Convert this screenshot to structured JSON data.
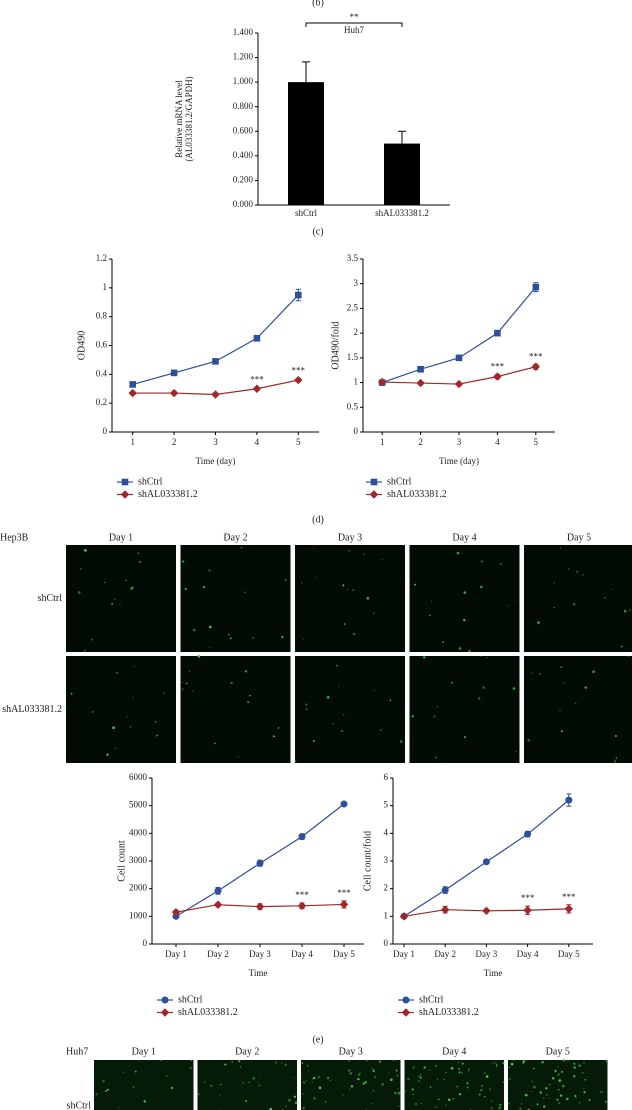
{
  "panel_labels": [
    "(b)",
    "(c)",
    "(d)",
    "(e)"
  ],
  "chart_data": [
    {
      "type": "bar",
      "title": "Huh7",
      "ylabel": [
        "Relative mRNA level",
        "(AL033381.2/GAPDH)"
      ],
      "categories": [
        "shCtrl",
        "shAL033381.2"
      ],
      "values": [
        1.0,
        0.5
      ],
      "errors": [
        0.165,
        0.1
      ],
      "color": "#000000",
      "ylim": [
        0,
        1.4
      ],
      "yticks": [
        {
          "value": 0,
          "label": "0.000"
        },
        {
          "value": 0.2,
          "label": "0.200"
        },
        {
          "value": 0.4,
          "label": "0.400"
        },
        {
          "value": 0.6,
          "label": "0.600"
        },
        {
          "value": 0.8,
          "label": "0.800"
        },
        {
          "value": 1.0,
          "label": "1.000"
        },
        {
          "value": 1.2,
          "label": "1.200"
        },
        {
          "value": 1.4,
          "label": "1.400"
        }
      ],
      "annotations": [
        {
          "text": "**"
        }
      ]
    },
    {
      "type": "line",
      "ylabel": "OD490",
      "xlabel": "Time (day)",
      "x": [
        1,
        2,
        3,
        4,
        5
      ],
      "xlim": [
        0.5,
        5.5
      ],
      "xticks": [
        1,
        2,
        3,
        4,
        5
      ],
      "ylim": [
        0,
        1.2
      ],
      "yticks": [
        0,
        0.2,
        0.4,
        0.6,
        0.8,
        1,
        1.2
      ],
      "legend": "bottom",
      "series": [
        {
          "name": "shCtrl",
          "color": "#2e4f9b",
          "marker": "square",
          "values": [
            0.33,
            0.41,
            0.49,
            0.65,
            0.95
          ],
          "errors": [
            0.01,
            0.01,
            0.01,
            0.01,
            0.04
          ]
        },
        {
          "name": "shAL033381.2",
          "color": "#a3262a",
          "marker": "diamond",
          "values": [
            0.27,
            0.27,
            0.26,
            0.3,
            0.36
          ],
          "errors": [
            0.01,
            0.01,
            0.01,
            0.01,
            0.01
          ]
        }
      ],
      "annotations": [
        {
          "text": "***",
          "x": 4
        },
        {
          "text": "***",
          "x": 5
        }
      ]
    },
    {
      "type": "line",
      "ylabel": "OD490/fold",
      "xlabel": "Time (day)",
      "x": [
        1,
        2,
        3,
        4,
        5
      ],
      "xlim": [
        0.5,
        5.5
      ],
      "xticks": [
        1,
        2,
        3,
        4,
        5
      ],
      "ylim": [
        0,
        3.5
      ],
      "yticks": [
        0,
        0.5,
        1,
        1.5,
        2,
        2.5,
        3,
        3.5
      ],
      "legend": "bottom",
      "series": [
        {
          "name": "shCtrl",
          "color": "#2e4f9b",
          "marker": "square",
          "values": [
            1,
            1.27,
            1.5,
            2.0,
            2.93
          ],
          "errors": [
            0.02,
            0.02,
            0.03,
            0.03,
            0.09
          ]
        },
        {
          "name": "shAL033381.2",
          "color": "#a3262a",
          "marker": "diamond",
          "values": [
            1.01,
            0.99,
            0.97,
            1.12,
            1.32
          ],
          "errors": [
            0.02,
            0.02,
            0.02,
            0.04,
            0.05
          ]
        }
      ],
      "annotations": [
        {
          "text": "***",
          "x": 4
        },
        {
          "text": "***",
          "x": 5
        }
      ]
    },
    {
      "type": "line",
      "ylabel": "Cell count",
      "xlabel": "Time",
      "categories": [
        "Day 1",
        "Day 2",
        "Day 3",
        "Day 4",
        "Day 5"
      ],
      "ylim": [
        0,
        6000
      ],
      "yticks": [
        0,
        1000,
        2000,
        3000,
        4000,
        5000,
        6000
      ],
      "legend": "bottom",
      "series": [
        {
          "name": "shCtrl",
          "color": "#2e4f9b",
          "marker": "circle",
          "values": [
            1000,
            1920,
            2920,
            3880,
            5060
          ],
          "errors": [
            60,
            120,
            110,
            100,
            40
          ]
        },
        {
          "name": "shAL033381.2",
          "color": "#a3262a",
          "marker": "diamond",
          "values": [
            1150,
            1420,
            1350,
            1380,
            1430
          ],
          "errors": [
            60,
            60,
            100,
            100,
            130
          ]
        }
      ],
      "annotations": [
        {
          "text": "***",
          "category": "Day 4"
        },
        {
          "text": "***",
          "category": "Day 5"
        }
      ]
    },
    {
      "type": "line",
      "ylabel": "Cell count/fold",
      "xlabel": "Time",
      "categories": [
        "Day 1",
        "Day 2",
        "Day 3",
        "Day 4",
        "Day 5"
      ],
      "ylim": [
        0,
        6
      ],
      "yticks": [
        0,
        1,
        2,
        3,
        4,
        5,
        6
      ],
      "legend": "bottom",
      "series": [
        {
          "name": "shCtrl",
          "color": "#2e4f9b",
          "marker": "circle",
          "values": [
            1,
            1.95,
            2.97,
            3.97,
            5.2
          ],
          "errors": [
            0.03,
            0.12,
            0.03,
            0.1,
            0.22
          ]
        },
        {
          "name": "shAL033381.2",
          "color": "#a3262a",
          "marker": "diamond",
          "values": [
            1,
            1.24,
            1.2,
            1.22,
            1.27
          ],
          "errors": [
            0.03,
            0.12,
            0.03,
            0.15,
            0.15
          ]
        }
      ],
      "annotations": [
        {
          "text": "***",
          "category": "Day 4"
        },
        {
          "text": "***",
          "category": "Day 5"
        }
      ]
    }
  ],
  "image_panels": [
    {
      "title": "Hep3B",
      "columns": [
        "Day 1",
        "Day 2",
        "Day 3",
        "Day 4",
        "Day 5"
      ],
      "rows": [
        "shCtrl",
        "shAL033381.2"
      ]
    },
    {
      "title": "Huh7",
      "columns": [
        "Day 1",
        "Day 2",
        "Day 3",
        "Day 4",
        "Day 5"
      ],
      "rows": [
        "shCtrl"
      ]
    }
  ]
}
